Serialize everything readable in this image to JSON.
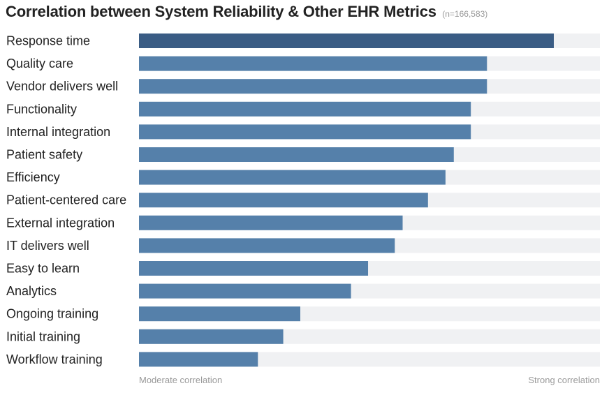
{
  "chart_data": {
    "type": "bar",
    "orientation": "horizontal",
    "title": "Correlation between System Reliability & Other EHR Metrics",
    "subtitle": "(n=166,583)",
    "categories": [
      "Response  time",
      "Quality care",
      "Vendor delivers well",
      "Functionality",
      "Internal integration",
      "Patient safety",
      "Efficiency",
      "Patient-centered care",
      "External integration",
      "IT delivers well",
      "Easy to learn",
      "Analytics",
      "Ongoing training",
      "Initial training",
      "Workflow training"
    ],
    "values": [
      0.9,
      0.755,
      0.755,
      0.72,
      0.72,
      0.683,
      0.665,
      0.627,
      0.572,
      0.555,
      0.497,
      0.46,
      0.35,
      0.313,
      0.258
    ],
    "xlim": [
      0,
      1
    ],
    "axis_left_label": "Moderate correlation",
    "axis_right_label": "Strong correlation",
    "grid": false,
    "legend": "none",
    "colors": {
      "highlight_bar": "#3a5c84",
      "bar": "#5580aa",
      "track": "#f0f1f3"
    }
  }
}
